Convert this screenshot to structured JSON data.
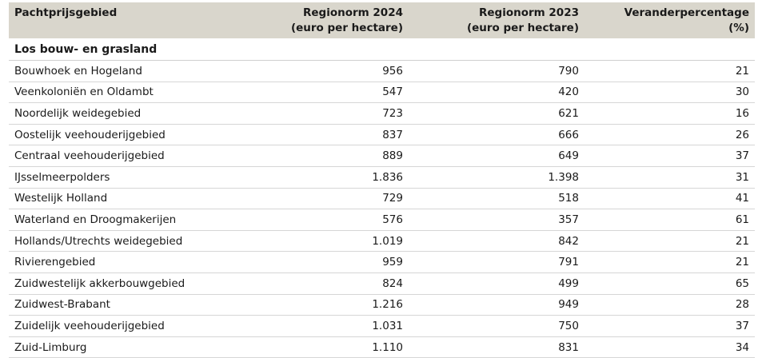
{
  "table": {
    "headers": [
      {
        "line1": "Pachtprijsgebied",
        "line2": ""
      },
      {
        "line1": "Regionorm 2024",
        "line2": "(euro per hectare)"
      },
      {
        "line1": "Regionorm 2023",
        "line2": "(euro per hectare)"
      },
      {
        "line1": "Veranderpercentage",
        "line2": "(%)"
      }
    ],
    "section_title": "Los bouw- en grasland",
    "rows": [
      {
        "region": "Bouwhoek en Hogeland",
        "norm2024": "956",
        "norm2023": "790",
        "change": "21"
      },
      {
        "region": "Veenkoloniën en Oldambt",
        "norm2024": "547",
        "norm2023": "420",
        "change": "30"
      },
      {
        "region": "Noordelijk weidegebied",
        "norm2024": "723",
        "norm2023": "621",
        "change": "16"
      },
      {
        "region": "Oostelijk veehouderijgebied",
        "norm2024": "837",
        "norm2023": "666",
        "change": "26"
      },
      {
        "region": "Centraal veehouderijgebied",
        "norm2024": "889",
        "norm2023": "649",
        "change": "37"
      },
      {
        "region": "IJsselmeerpolders",
        "norm2024": "1.836",
        "norm2023": "1.398",
        "change": "31"
      },
      {
        "region": "Westelijk Holland",
        "norm2024": "729",
        "norm2023": "518",
        "change": "41"
      },
      {
        "region": "Waterland en Droogmakerijen",
        "norm2024": "576",
        "norm2023": "357",
        "change": "61"
      },
      {
        "region": "Hollands/Utrechts weidegebied",
        "norm2024": "1.019",
        "norm2023": "842",
        "change": "21"
      },
      {
        "region": "Rivierengebied",
        "norm2024": "959",
        "norm2023": "791",
        "change": "21"
      },
      {
        "region": "Zuidwestelijk akkerbouwgebied",
        "norm2024": "824",
        "norm2023": "499",
        "change": "65"
      },
      {
        "region": "Zuidwest-Brabant",
        "norm2024": "1.216",
        "norm2023": "949",
        "change": "28"
      },
      {
        "region": "Zuidelijk veehouderijgebied",
        "norm2024": "1.031",
        "norm2023": "750",
        "change": "37"
      },
      {
        "region": "Zuid-Limburg",
        "norm2024": "1.110",
        "norm2023": "831",
        "change": "34"
      }
    ]
  },
  "colors": {
    "header_background": "#d9d6cc",
    "row_border": "#d6d6d6"
  }
}
